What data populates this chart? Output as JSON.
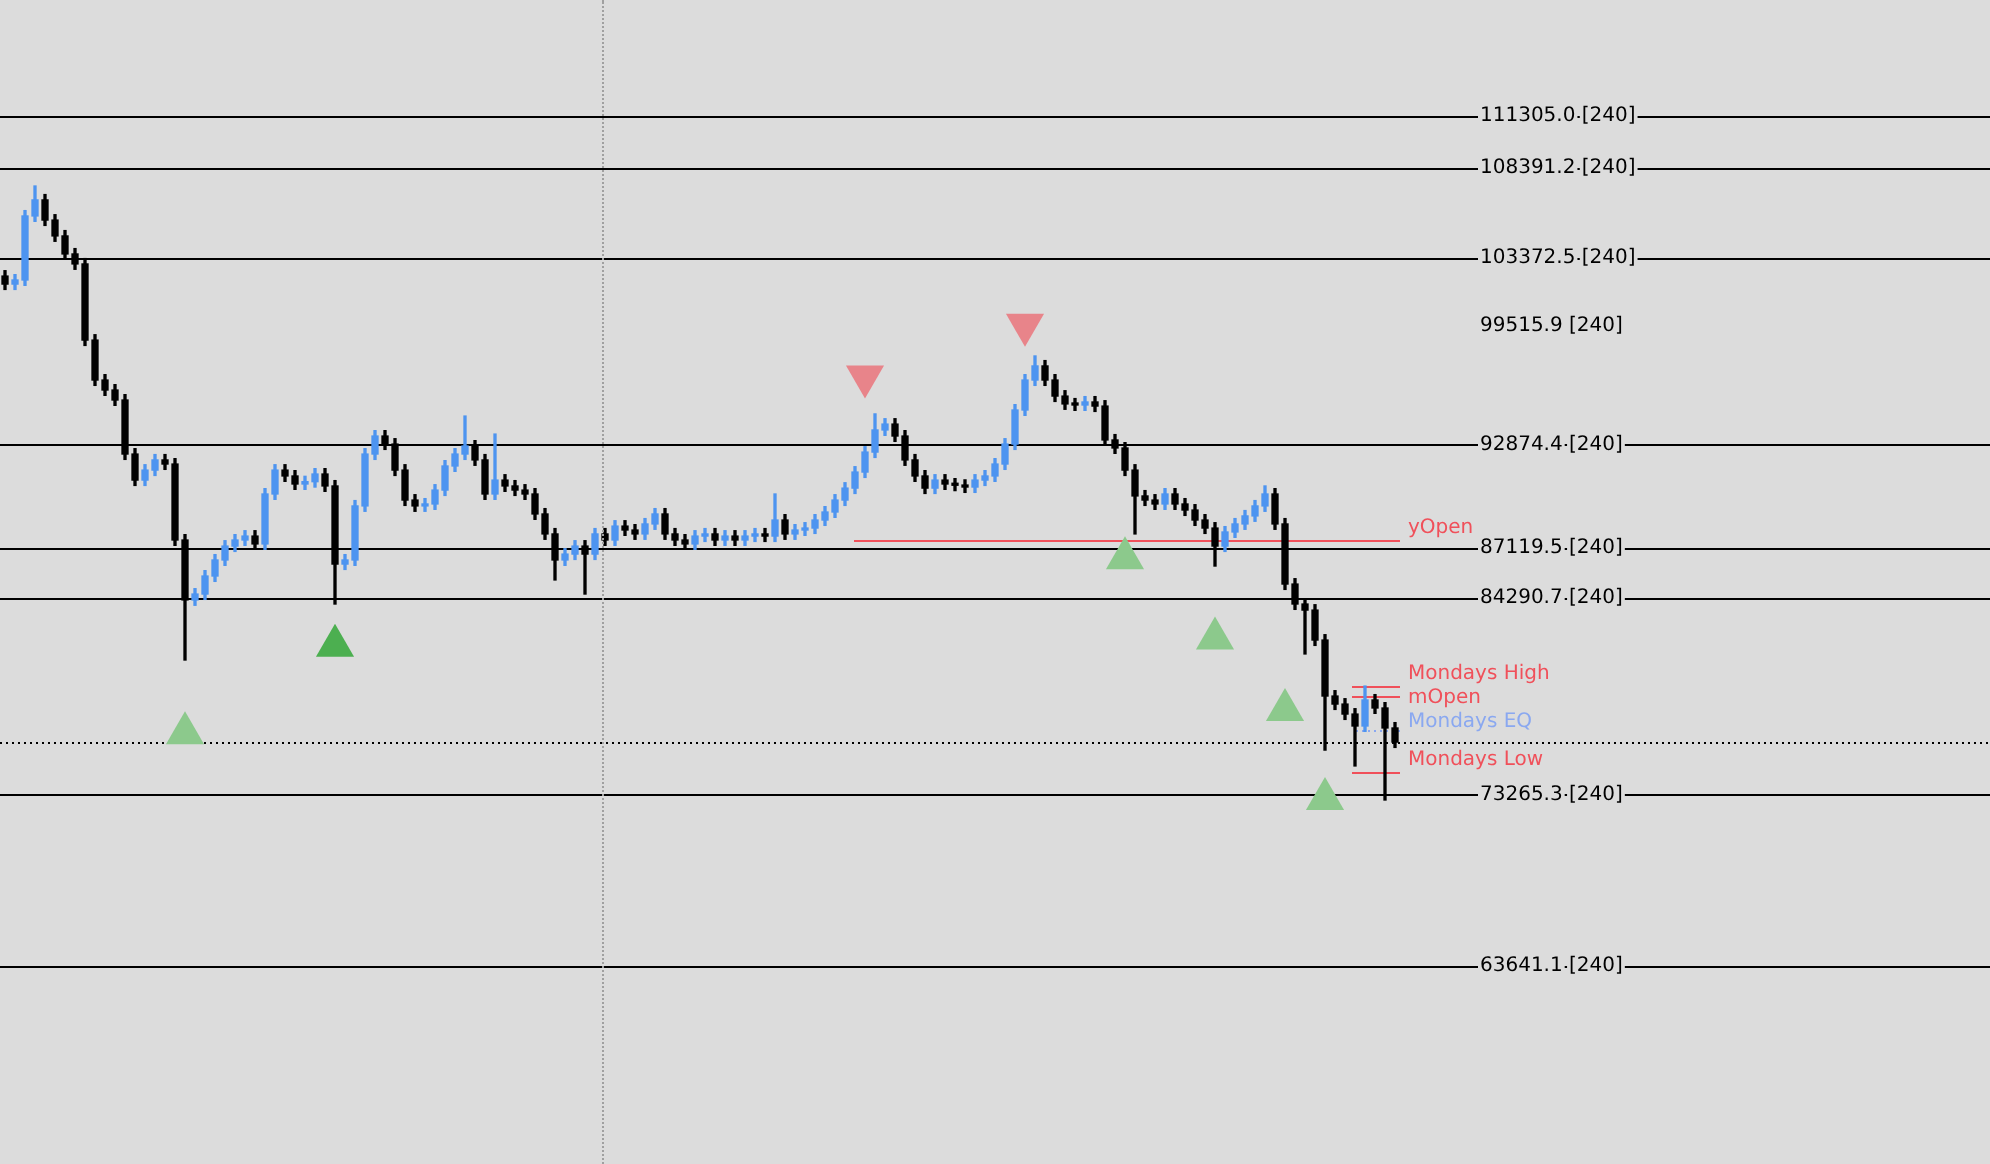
{
  "chart_data": {
    "type": "candlestick",
    "tick_labels": "y",
    "categories": [
      null,
      null,
      null,
      null,
      null,
      null,
      null,
      null,
      null,
      null,
      null,
      null,
      null,
      null,
      null,
      null,
      null,
      null,
      null,
      null,
      null,
      null,
      null,
      null,
      null,
      null,
      null,
      null,
      null,
      null,
      null,
      null,
      null,
      null,
      null,
      null,
      null,
      null,
      null,
      null,
      null,
      null,
      null,
      null,
      null,
      null,
      null,
      null,
      null,
      null,
      null,
      null,
      null,
      null,
      null,
      null,
      null,
      null,
      null,
      null,
      null,
      null,
      null,
      null,
      null,
      null,
      null,
      null,
      null,
      null,
      null,
      null,
      null,
      null,
      null,
      null,
      null,
      null,
      null,
      null,
      null,
      null,
      null,
      null,
      null,
      null,
      null,
      null,
      null,
      null,
      null,
      null,
      null,
      null,
      null,
      null,
      null,
      null,
      null,
      null,
      null,
      null,
      null,
      null,
      null,
      null,
      null,
      null,
      null,
      null,
      null,
      null,
      null,
      null,
      null,
      null,
      null,
      null,
      null,
      null,
      null,
      null,
      null,
      null,
      null,
      null,
      null,
      null,
      null,
      null,
      null,
      null,
      null,
      null,
      null,
      null,
      null,
      null,
      null,
      null
    ],
    "ylim": [
      52540,
      117810
    ],
    "yticks": [
      {
        "value": 111305.0,
        "label": "111305.0"
      },
      {
        "value": 108391.2,
        "label": "108391.2"
      },
      {
        "value": 103372.5,
        "label": "103372.5"
      },
      {
        "value": 99515.9,
        "label": "99515.9"
      },
      {
        "value": 92874.4,
        "label": "92874.4"
      },
      {
        "value": 87119.5,
        "label": "87119.5"
      },
      {
        "value": 84290.7,
        "label": "84290.7"
      },
      {
        "value": 73265.3,
        "label": "73265.3"
      },
      {
        "value": 63641.1,
        "label": "63641.1"
      }
    ],
    "annotations": [
      "[240]",
      "[240]",
      "[240]",
      "[240]",
      "[240]",
      "[240]",
      "[240]",
      "[240]",
      "[240]"
    ],
    "ohlc": [
      [
        102330,
        102630,
        101580,
        101880
      ],
      [
        101880,
        102410,
        101580,
        102110
      ],
      [
        102110,
        106000,
        101810,
        105700
      ],
      [
        105700,
        107380,
        105400,
        106600
      ],
      [
        106600,
        106900,
        105170,
        105470
      ],
      [
        105470,
        105770,
        104280,
        104580
      ],
      [
        104580,
        104880,
        103270,
        103570
      ],
      [
        103570,
        103870,
        102710,
        103010
      ],
      [
        103010,
        103310,
        98440,
        98740
      ],
      [
        98740,
        99040,
        96200,
        96500
      ],
      [
        96500,
        96800,
        95640,
        95940
      ],
      [
        95940,
        96240,
        95080,
        95380
      ],
      [
        95380,
        95680,
        92050,
        92350
      ],
      [
        92350,
        92650,
        90590,
        90890
      ],
      [
        90890,
        91750,
        90590,
        91450
      ],
      [
        91450,
        92320,
        91150,
        92020
      ],
      [
        92020,
        92320,
        91490,
        91790
      ],
      [
        91790,
        92090,
        87230,
        87530
      ],
      [
        87530,
        87830,
        80800,
        84170
      ],
      [
        84170,
        84800,
        83870,
        84500
      ],
      [
        84500,
        85810,
        84200,
        85510
      ],
      [
        85510,
        86710,
        85210,
        86410
      ],
      [
        86410,
        87490,
        86110,
        87190
      ],
      [
        87190,
        87830,
        86890,
        87530
      ],
      [
        87530,
        88050,
        87230,
        87750
      ],
      [
        87750,
        88050,
        87010,
        87310
      ],
      [
        87310,
        90410,
        87010,
        90110
      ],
      [
        90110,
        91750,
        89810,
        91450
      ],
      [
        91450,
        91750,
        90820,
        91120
      ],
      [
        91120,
        91420,
        90370,
        90670
      ],
      [
        90670,
        91100,
        90370,
        90800
      ],
      [
        90800,
        91530,
        90500,
        91230
      ],
      [
        91230,
        91530,
        90260,
        90560
      ],
      [
        90560,
        90860,
        83940,
        86180
      ],
      [
        86180,
        86710,
        85880,
        86410
      ],
      [
        86410,
        89740,
        86110,
        89440
      ],
      [
        89440,
        92650,
        89140,
        92350
      ],
      [
        92350,
        93660,
        92050,
        93360
      ],
      [
        93360,
        93660,
        92610,
        92910
      ],
      [
        92910,
        93210,
        91150,
        91450
      ],
      [
        91450,
        91750,
        89470,
        89770
      ],
      [
        89770,
        90070,
        89140,
        89440
      ],
      [
        89440,
        89850,
        89140,
        89550
      ],
      [
        89550,
        90630,
        89250,
        90330
      ],
      [
        90330,
        91980,
        90030,
        91680
      ],
      [
        91680,
        92650,
        91380,
        92350
      ],
      [
        92350,
        94480,
        92050,
        92800
      ],
      [
        92800,
        93100,
        91720,
        92020
      ],
      [
        92020,
        92320,
        89810,
        90110
      ],
      [
        90110,
        93470,
        89810,
        90890
      ],
      [
        90890,
        91190,
        90260,
        90560
      ],
      [
        90560,
        90860,
        90030,
        90330
      ],
      [
        90330,
        90630,
        89810,
        90110
      ],
      [
        90110,
        90410,
        88690,
        88990
      ],
      [
        88990,
        89290,
        87570,
        87870
      ],
      [
        87870,
        88170,
        85290,
        86410
      ],
      [
        86410,
        87040,
        86110,
        86740
      ],
      [
        86740,
        87490,
        86440,
        87190
      ],
      [
        87190,
        87490,
        84500,
        86740
      ],
      [
        86740,
        88170,
        86440,
        87870
      ],
      [
        87870,
        88170,
        87230,
        87530
      ],
      [
        87530,
        88610,
        87230,
        88310
      ],
      [
        88310,
        88610,
        87790,
        88090
      ],
      [
        88090,
        88390,
        87570,
        87870
      ],
      [
        87870,
        88730,
        87570,
        88430
      ],
      [
        88430,
        89290,
        88130,
        88990
      ],
      [
        88990,
        89290,
        87570,
        87870
      ],
      [
        87870,
        88170,
        87230,
        87530
      ],
      [
        87530,
        87830,
        87010,
        87310
      ],
      [
        87310,
        88050,
        87010,
        87750
      ],
      [
        87750,
        88170,
        87450,
        87870
      ],
      [
        87870,
        88170,
        87230,
        87530
      ],
      [
        87530,
        88050,
        87230,
        87750
      ],
      [
        87750,
        88050,
        87230,
        87530
      ],
      [
        87530,
        88050,
        87230,
        87750
      ],
      [
        87750,
        88170,
        87450,
        87870
      ],
      [
        87870,
        88170,
        87450,
        87750
      ],
      [
        87750,
        90110,
        87450,
        88650
      ],
      [
        88650,
        88950,
        87570,
        87870
      ],
      [
        87870,
        88390,
        87570,
        88090
      ],
      [
        88090,
        88500,
        87790,
        88200
      ],
      [
        88200,
        88950,
        87900,
        88650
      ],
      [
        88650,
        89400,
        88350,
        89100
      ],
      [
        89100,
        90070,
        88800,
        89770
      ],
      [
        89770,
        90740,
        89470,
        90440
      ],
      [
        90440,
        91640,
        90140,
        91340
      ],
      [
        91340,
        92760,
        91040,
        92460
      ],
      [
        92460,
        94600,
        92160,
        93700
      ],
      [
        93700,
        94330,
        93400,
        94030
      ],
      [
        94030,
        94330,
        93060,
        93360
      ],
      [
        93360,
        93660,
        91720,
        92020
      ],
      [
        92020,
        92320,
        90820,
        91120
      ],
      [
        91120,
        91420,
        90140,
        90440
      ],
      [
        90440,
        91190,
        90140,
        90890
      ],
      [
        90890,
        91190,
        90370,
        90670
      ],
      [
        90670,
        90970,
        90300,
        90600
      ],
      [
        90600,
        90900,
        90200,
        90500
      ],
      [
        90500,
        91190,
        90200,
        90890
      ],
      [
        90890,
        91420,
        90590,
        91120
      ],
      [
        91120,
        92090,
        90820,
        91790
      ],
      [
        91790,
        93210,
        91490,
        92910
      ],
      [
        92910,
        95120,
        92610,
        94820
      ],
      [
        94820,
        96800,
        94520,
        96500
      ],
      [
        96500,
        97850,
        96200,
        97290
      ],
      [
        97290,
        97590,
        96200,
        96500
      ],
      [
        96500,
        96800,
        95300,
        95600
      ],
      [
        95600,
        95900,
        94860,
        95160
      ],
      [
        95160,
        95460,
        94800,
        95100
      ],
      [
        95100,
        95570,
        94800,
        95270
      ],
      [
        95270,
        95570,
        94740,
        95040
      ],
      [
        95040,
        95340,
        92840,
        93140
      ],
      [
        93140,
        93440,
        92390,
        92690
      ],
      [
        92690,
        92990,
        91150,
        91450
      ],
      [
        91450,
        91750,
        87870,
        90000
      ],
      [
        90000,
        90300,
        89470,
        89770
      ],
      [
        89770,
        90070,
        89250,
        89550
      ],
      [
        89550,
        90410,
        89250,
        90110
      ],
      [
        90110,
        90410,
        89250,
        89550
      ],
      [
        89550,
        89850,
        88910,
        89210
      ],
      [
        89210,
        89510,
        88350,
        88650
      ],
      [
        88650,
        88950,
        87900,
        88200
      ],
      [
        88200,
        88500,
        86070,
        87190
      ],
      [
        87190,
        88280,
        86890,
        87980
      ],
      [
        87980,
        88730,
        87680,
        88430
      ],
      [
        88430,
        89180,
        88130,
        88880
      ],
      [
        88880,
        89740,
        88580,
        89440
      ],
      [
        89440,
        90560,
        89140,
        90110
      ],
      [
        90110,
        90410,
        88130,
        88430
      ],
      [
        88430,
        88730,
        84760,
        85060
      ],
      [
        85060,
        85360,
        83640,
        83940
      ],
      [
        83940,
        84240,
        81140,
        83600
      ],
      [
        83600,
        83900,
        81620,
        81920
      ],
      [
        81920,
        82220,
        75750,
        78780
      ],
      [
        78780,
        79080,
        78030,
        78330
      ],
      [
        78330,
        78630,
        77470,
        77770
      ],
      [
        77770,
        78070,
        74860,
        77100
      ],
      [
        77100,
        79340,
        76800,
        78560
      ],
      [
        78560,
        78860,
        77810,
        78110
      ],
      [
        78110,
        78410,
        72950,
        76990
      ],
      [
        76990,
        77290,
        75900,
        76200
      ]
    ],
    "colors": [
      "#000000",
      "#4d94f0",
      "#4d94f0",
      "#4d94f0",
      "#000000",
      "#000000",
      "#000000",
      "#000000",
      "#000000",
      "#000000",
      "#000000",
      "#000000",
      "#000000",
      "#000000",
      "#4d94f0",
      "#4d94f0",
      "#000000",
      "#000000",
      "#000000",
      "#4d94f0",
      "#4d94f0",
      "#4d94f0",
      "#4d94f0",
      "#4d94f0",
      "#4d94f0",
      "#000000",
      "#4d94f0",
      "#4d94f0",
      "#000000",
      "#000000",
      "#4d94f0",
      "#4d94f0",
      "#000000",
      "#000000",
      "#4d94f0",
      "#4d94f0",
      "#4d94f0",
      "#4d94f0",
      "#000000",
      "#000000",
      "#000000",
      "#000000",
      "#4d94f0",
      "#4d94f0",
      "#4d94f0",
      "#4d94f0",
      "#4d94f0",
      "#000000",
      "#000000",
      "#4d94f0",
      "#000000",
      "#000000",
      "#000000",
      "#000000",
      "#000000",
      "#000000",
      "#4d94f0",
      "#4d94f0",
      "#000000",
      "#4d94f0",
      "#000000",
      "#4d94f0",
      "#000000",
      "#000000",
      "#4d94f0",
      "#4d94f0",
      "#000000",
      "#000000",
      "#000000",
      "#4d94f0",
      "#4d94f0",
      "#000000",
      "#4d94f0",
      "#000000",
      "#4d94f0",
      "#4d94f0",
      "#000000",
      "#4d94f0",
      "#000000",
      "#4d94f0",
      "#4d94f0",
      "#4d94f0",
      "#4d94f0",
      "#4d94f0",
      "#4d94f0",
      "#4d94f0",
      "#4d94f0",
      "#4d94f0",
      "#4d94f0",
      "#000000",
      "#000000",
      "#000000",
      "#000000",
      "#4d94f0",
      "#000000",
      "#000000",
      "#000000",
      "#4d94f0",
      "#4d94f0",
      "#4d94f0",
      "#4d94f0",
      "#4d94f0",
      "#4d94f0",
      "#4d94f0",
      "#000000",
      "#000000",
      "#000000",
      "#000000",
      "#4d94f0",
      "#000000",
      "#000000",
      "#000000",
      "#000000",
      "#000000",
      "#000000",
      "#000000",
      "#4d94f0",
      "#000000",
      "#000000",
      "#000000",
      "#000000",
      "#000000",
      "#4d94f0",
      "#4d94f0",
      "#4d94f0",
      "#4d94f0",
      "#4d94f0",
      "#000000",
      "#000000",
      "#000000",
      "#000000",
      "#000000",
      "#000000",
      "#000000",
      "#000000",
      "#000000",
      "#4d94f0",
      "#000000",
      "#000000",
      "#000000"
    ],
    "series": [
      {
        "type": "scatter",
        "marker": "triangle",
        "color": "#8cc98c",
        "values": [
          null,
          null,
          null,
          null,
          null,
          null,
          null,
          null,
          null,
          null,
          null,
          null,
          null,
          null,
          null,
          null,
          null,
          null,
          76700,
          null,
          null,
          null,
          null,
          null,
          null,
          null,
          null,
          null,
          null,
          null,
          null,
          null,
          null,
          null,
          null,
          null,
          null,
          null,
          null,
          null,
          null,
          null,
          null,
          null,
          null,
          null,
          null,
          null,
          null,
          null,
          null,
          null,
          null,
          null,
          null,
          null,
          null,
          null,
          null,
          null,
          null,
          null,
          null,
          null,
          null,
          null,
          null,
          null,
          null,
          null,
          null,
          null,
          null,
          null,
          null,
          null,
          null,
          null,
          null,
          null,
          null,
          null,
          null,
          null,
          null,
          null,
          null,
          null,
          null,
          null,
          null,
          null,
          null,
          null,
          null,
          null,
          null,
          null,
          null,
          null,
          null,
          null,
          null,
          null,
          null,
          null,
          null,
          null,
          null,
          null,
          null,
          null,
          86500,
          null,
          null,
          null,
          null,
          null,
          null,
          null,
          null,
          82000,
          null,
          null,
          null,
          null,
          null,
          null,
          78000,
          null,
          null,
          null,
          73000,
          null,
          null,
          null,
          null,
          null,
          null,
          null
        ]
      },
      {
        "type": "scatter",
        "marker": "triangle",
        "color": "#4caf50",
        "values": [
          null,
          null,
          null,
          null,
          null,
          null,
          null,
          null,
          null,
          null,
          null,
          null,
          null,
          null,
          null,
          null,
          null,
          null,
          null,
          null,
          null,
          null,
          null,
          null,
          null,
          null,
          null,
          null,
          null,
          null,
          null,
          null,
          null,
          81600,
          null,
          null,
          null,
          null,
          null,
          null,
          null,
          null,
          null,
          null,
          null,
          null,
          null,
          null,
          null,
          null,
          null,
          null,
          null,
          null,
          null,
          null,
          null,
          null,
          null,
          null,
          null,
          null,
          null,
          null,
          null,
          null,
          null,
          null,
          null,
          null,
          null,
          null,
          null,
          null,
          null,
          null,
          null,
          null,
          null,
          null,
          null,
          null,
          null,
          null,
          null,
          null,
          null,
          null,
          null,
          null,
          null,
          null,
          null,
          null,
          null,
          null,
          null,
          null,
          null,
          null,
          null,
          null,
          null,
          null,
          null,
          null,
          null,
          null,
          null,
          null,
          null,
          null,
          null,
          null,
          null,
          null,
          null,
          null,
          null,
          null,
          null,
          null,
          null,
          null,
          null,
          null,
          null,
          null,
          null,
          null,
          null,
          null,
          null,
          null,
          null,
          null,
          null,
          null,
          null,
          null
        ]
      },
      {
        "type": "scatter",
        "marker": "triangle-down",
        "color": "#e8848a",
        "values": [
          null,
          null,
          null,
          null,
          null,
          null,
          null,
          null,
          null,
          null,
          null,
          null,
          null,
          null,
          null,
          null,
          null,
          null,
          null,
          null,
          null,
          null,
          null,
          null,
          null,
          null,
          null,
          null,
          null,
          null,
          null,
          null,
          null,
          null,
          null,
          null,
          null,
          null,
          null,
          null,
          null,
          null,
          null,
          null,
          null,
          null,
          null,
          null,
          null,
          null,
          null,
          null,
          null,
          null,
          null,
          null,
          null,
          null,
          null,
          null,
          null,
          null,
          null,
          null,
          null,
          null,
          null,
          null,
          null,
          null,
          null,
          null,
          null,
          null,
          null,
          null,
          null,
          null,
          null,
          null,
          null,
          null,
          null,
          null,
          null,
          null,
          96700,
          null,
          null,
          null,
          null,
          null,
          null,
          null,
          null,
          null,
          null,
          null,
          null,
          null,
          null,
          null,
          99600,
          null,
          null,
          null,
          null,
          null,
          null,
          null,
          null,
          null,
          null,
          null,
          null,
          null,
          null,
          null,
          null,
          null,
          null,
          null,
          null,
          null,
          null,
          null,
          null,
          null,
          null,
          null,
          null,
          null,
          null,
          null,
          null,
          null,
          null,
          null,
          null,
          null
        ]
      }
    ],
    "ref_lines": [
      {
        "axis": "y",
        "value": 111305.0,
        "label": null,
        "color": "#000000",
        "line_style": "solid"
      },
      {
        "axis": "y",
        "value": 108391.2,
        "label": null,
        "color": "#000000",
        "line_style": "solid"
      },
      {
        "axis": "y",
        "value": 103372.5,
        "label": null,
        "color": "#000000",
        "line_style": "solid"
      },
      {
        "axis": "y",
        "value": 92874.4,
        "label": null,
        "color": "#000000",
        "line_style": "solid"
      },
      {
        "axis": "y",
        "value": 87119.5,
        "label": null,
        "color": "#000000",
        "line_style": "solid"
      },
      {
        "axis": "y",
        "value": 84290.7,
        "label": null,
        "color": "#000000",
        "line_style": "solid"
      },
      {
        "axis": "y",
        "value": 73265.3,
        "label": null,
        "color": "#000000",
        "line_style": "solid"
      },
      {
        "axis": "y",
        "value": 63641.1,
        "label": null,
        "color": "#000000",
        "line_style": "solid"
      },
      {
        "axis": "y",
        "value": 87530,
        "label": "yOpen",
        "color": "#f0505a",
        "line_style": "solid"
      },
      {
        "axis": "y",
        "value": 79340,
        "label": "Mondays High",
        "color": "#f0505a",
        "line_style": "solid"
      },
      {
        "axis": "y",
        "value": 78780,
        "label": "mOpen",
        "color": "#f0505a",
        "line_style": "solid"
      },
      {
        "axis": "y",
        "value": 76880,
        "label": "Mondays EQ",
        "color": "#8aa8f0",
        "line_style": "dotted"
      },
      {
        "axis": "y",
        "value": 74520,
        "label": "Mondays Low",
        "color": "#f0505a",
        "line_style": "solid"
      },
      {
        "axis": "y",
        "value": 76200,
        "label": null,
        "color": "#000000",
        "line_style": "dotted"
      }
    ]
  }
}
